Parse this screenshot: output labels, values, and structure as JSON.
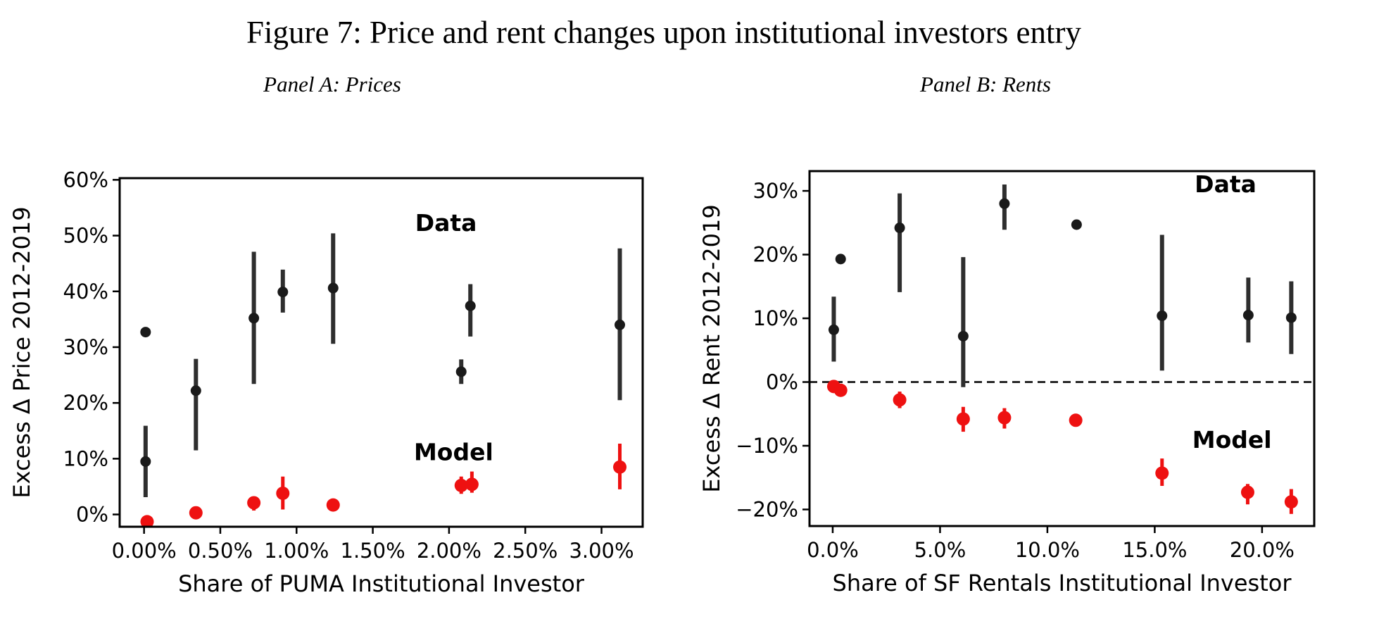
{
  "figure": {
    "title": "Figure 7: Price and rent changes upon institutional investors entry"
  },
  "colors": {
    "data_marker": "#1a1a1a",
    "data_errorbar": "#2e2e2e",
    "model": "#ee1111",
    "axis": "#000000",
    "background": "#ffffff"
  },
  "chart_data": [
    {
      "type": "scatter",
      "panel_title": "Panel A: Prices",
      "xlabel": "Share of PUMA Institutional Investor",
      "ylabel": "Excess Δ Price 2012-2019",
      "xlim": [
        -0.16,
        3.27
      ],
      "ylim": [
        -2.2,
        60.3
      ],
      "grid": false,
      "zero_line": false,
      "xticks": {
        "values": [
          0,
          0.5,
          1.0,
          1.5,
          2.0,
          2.5,
          3.0
        ],
        "labels": [
          "0.00%",
          "0.50%",
          "1.00%",
          "1.50%",
          "2.00%",
          "2.50%",
          "3.00%"
        ]
      },
      "yticks": {
        "values": [
          0,
          10,
          20,
          30,
          40,
          50,
          60
        ],
        "labels": [
          "0%",
          "10%",
          "20%",
          "30%",
          "40%",
          "50%",
          "60%"
        ]
      },
      "series": [
        {
          "name": "Data",
          "color": "#1a1a1a",
          "errorbar_color": "#2e2e2e",
          "label_pos": {
            "x": 1.98,
            "y": 52.2
          },
          "points": [
            {
              "x": 0.01,
              "y": 32.7,
              "lo": null,
              "hi": null
            },
            {
              "x": 0.01,
              "y": 9.5,
              "lo": 3.1,
              "hi": 15.9
            },
            {
              "x": 0.34,
              "y": 22.2,
              "lo": 11.5,
              "hi": 27.9
            },
            {
              "x": 0.72,
              "y": 35.2,
              "lo": 23.4,
              "hi": 47.1
            },
            {
              "x": 0.91,
              "y": 39.9,
              "lo": 36.2,
              "hi": 43.9
            },
            {
              "x": 1.24,
              "y": 40.6,
              "lo": 30.6,
              "hi": 50.4
            },
            {
              "x": 2.08,
              "y": 25.6,
              "lo": 23.4,
              "hi": 27.8
            },
            {
              "x": 2.14,
              "y": 37.4,
              "lo": 31.9,
              "hi": 41.3
            },
            {
              "x": 3.12,
              "y": 34.0,
              "lo": 20.5,
              "hi": 47.7
            }
          ]
        },
        {
          "name": "Model",
          "color": "#ee1111",
          "errorbar_color": "#ee1111",
          "label_pos": {
            "x": 2.03,
            "y": 11.1
          },
          "points": [
            {
              "x": 0.02,
              "y": -1.3,
              "lo": null,
              "hi": null
            },
            {
              "x": 0.34,
              "y": 0.3,
              "lo": null,
              "hi": null
            },
            {
              "x": 0.72,
              "y": 2.1,
              "lo": 0.7,
              "hi": 3.2
            },
            {
              "x": 0.91,
              "y": 3.8,
              "lo": 0.9,
              "hi": 6.8
            },
            {
              "x": 1.24,
              "y": 1.7,
              "lo": null,
              "hi": null
            },
            {
              "x": 2.08,
              "y": 5.2,
              "lo": 3.7,
              "hi": 6.8
            },
            {
              "x": 2.15,
              "y": 5.4,
              "lo": 3.9,
              "hi": 7.7
            },
            {
              "x": 3.12,
              "y": 8.5,
              "lo": 4.5,
              "hi": 12.7
            }
          ]
        }
      ]
    },
    {
      "type": "scatter",
      "panel_title": "Panel B: Rents",
      "xlabel": "Share of SF Rentals Institutional Investor",
      "ylabel": "Excess Δ Rent 2012-2019",
      "xlim": [
        -1.08,
        22.43
      ],
      "ylim": [
        -22.6,
        33.1
      ],
      "grid": false,
      "zero_line": true,
      "xticks": {
        "values": [
          0,
          5,
          10,
          15,
          20
        ],
        "labels": [
          "0.0%",
          "5.0%",
          "10.0%",
          "15.0%",
          "20.0%"
        ]
      },
      "yticks": {
        "values": [
          -20,
          -10,
          0,
          10,
          20,
          30
        ],
        "labels": [
          "−20%",
          "−10%",
          "0%",
          "10%",
          "20%",
          "30%"
        ]
      },
      "series": [
        {
          "name": "Data",
          "color": "#1a1a1a",
          "errorbar_color": "#2e2e2e",
          "label_pos": {
            "x": 18.3,
            "y": 31.0
          },
          "points": [
            {
              "x": 0.05,
              "y": 8.2,
              "lo": 3.2,
              "hi": 13.4
            },
            {
              "x": 0.37,
              "y": 19.3,
              "lo": null,
              "hi": null
            },
            {
              "x": 3.12,
              "y": 24.2,
              "lo": 14.1,
              "hi": 29.6
            },
            {
              "x": 6.08,
              "y": 7.2,
              "lo": -0.8,
              "hi": 19.6
            },
            {
              "x": 8.0,
              "y": 28.0,
              "lo": 23.9,
              "hi": 31.0
            },
            {
              "x": 11.36,
              "y": 24.7,
              "lo": null,
              "hi": null
            },
            {
              "x": 15.34,
              "y": 10.4,
              "lo": 1.8,
              "hi": 23.1
            },
            {
              "x": 19.36,
              "y": 10.5,
              "lo": 6.2,
              "hi": 16.4
            },
            {
              "x": 21.36,
              "y": 10.1,
              "lo": 4.4,
              "hi": 15.8
            }
          ]
        },
        {
          "name": "Model",
          "color": "#ee1111",
          "errorbar_color": "#ee1111",
          "label_pos": {
            "x": 18.6,
            "y": -9.1
          },
          "points": [
            {
              "x": 0.05,
              "y": -0.7,
              "lo": null,
              "hi": null
            },
            {
              "x": 0.37,
              "y": -1.3,
              "lo": null,
              "hi": null
            },
            {
              "x": 3.12,
              "y": -2.8,
              "lo": -4.1,
              "hi": -1.5
            },
            {
              "x": 6.08,
              "y": -5.8,
              "lo": -7.8,
              "hi": -3.9
            },
            {
              "x": 8.0,
              "y": -5.6,
              "lo": -7.3,
              "hi": -4.1
            },
            {
              "x": 11.32,
              "y": -6.0,
              "lo": null,
              "hi": null
            },
            {
              "x": 15.34,
              "y": -14.3,
              "lo": -16.3,
              "hi": -12.0
            },
            {
              "x": 19.33,
              "y": -17.3,
              "lo": -19.2,
              "hi": -16.0
            },
            {
              "x": 21.36,
              "y": -18.8,
              "lo": -20.7,
              "hi": -16.8
            }
          ]
        }
      ]
    }
  ]
}
